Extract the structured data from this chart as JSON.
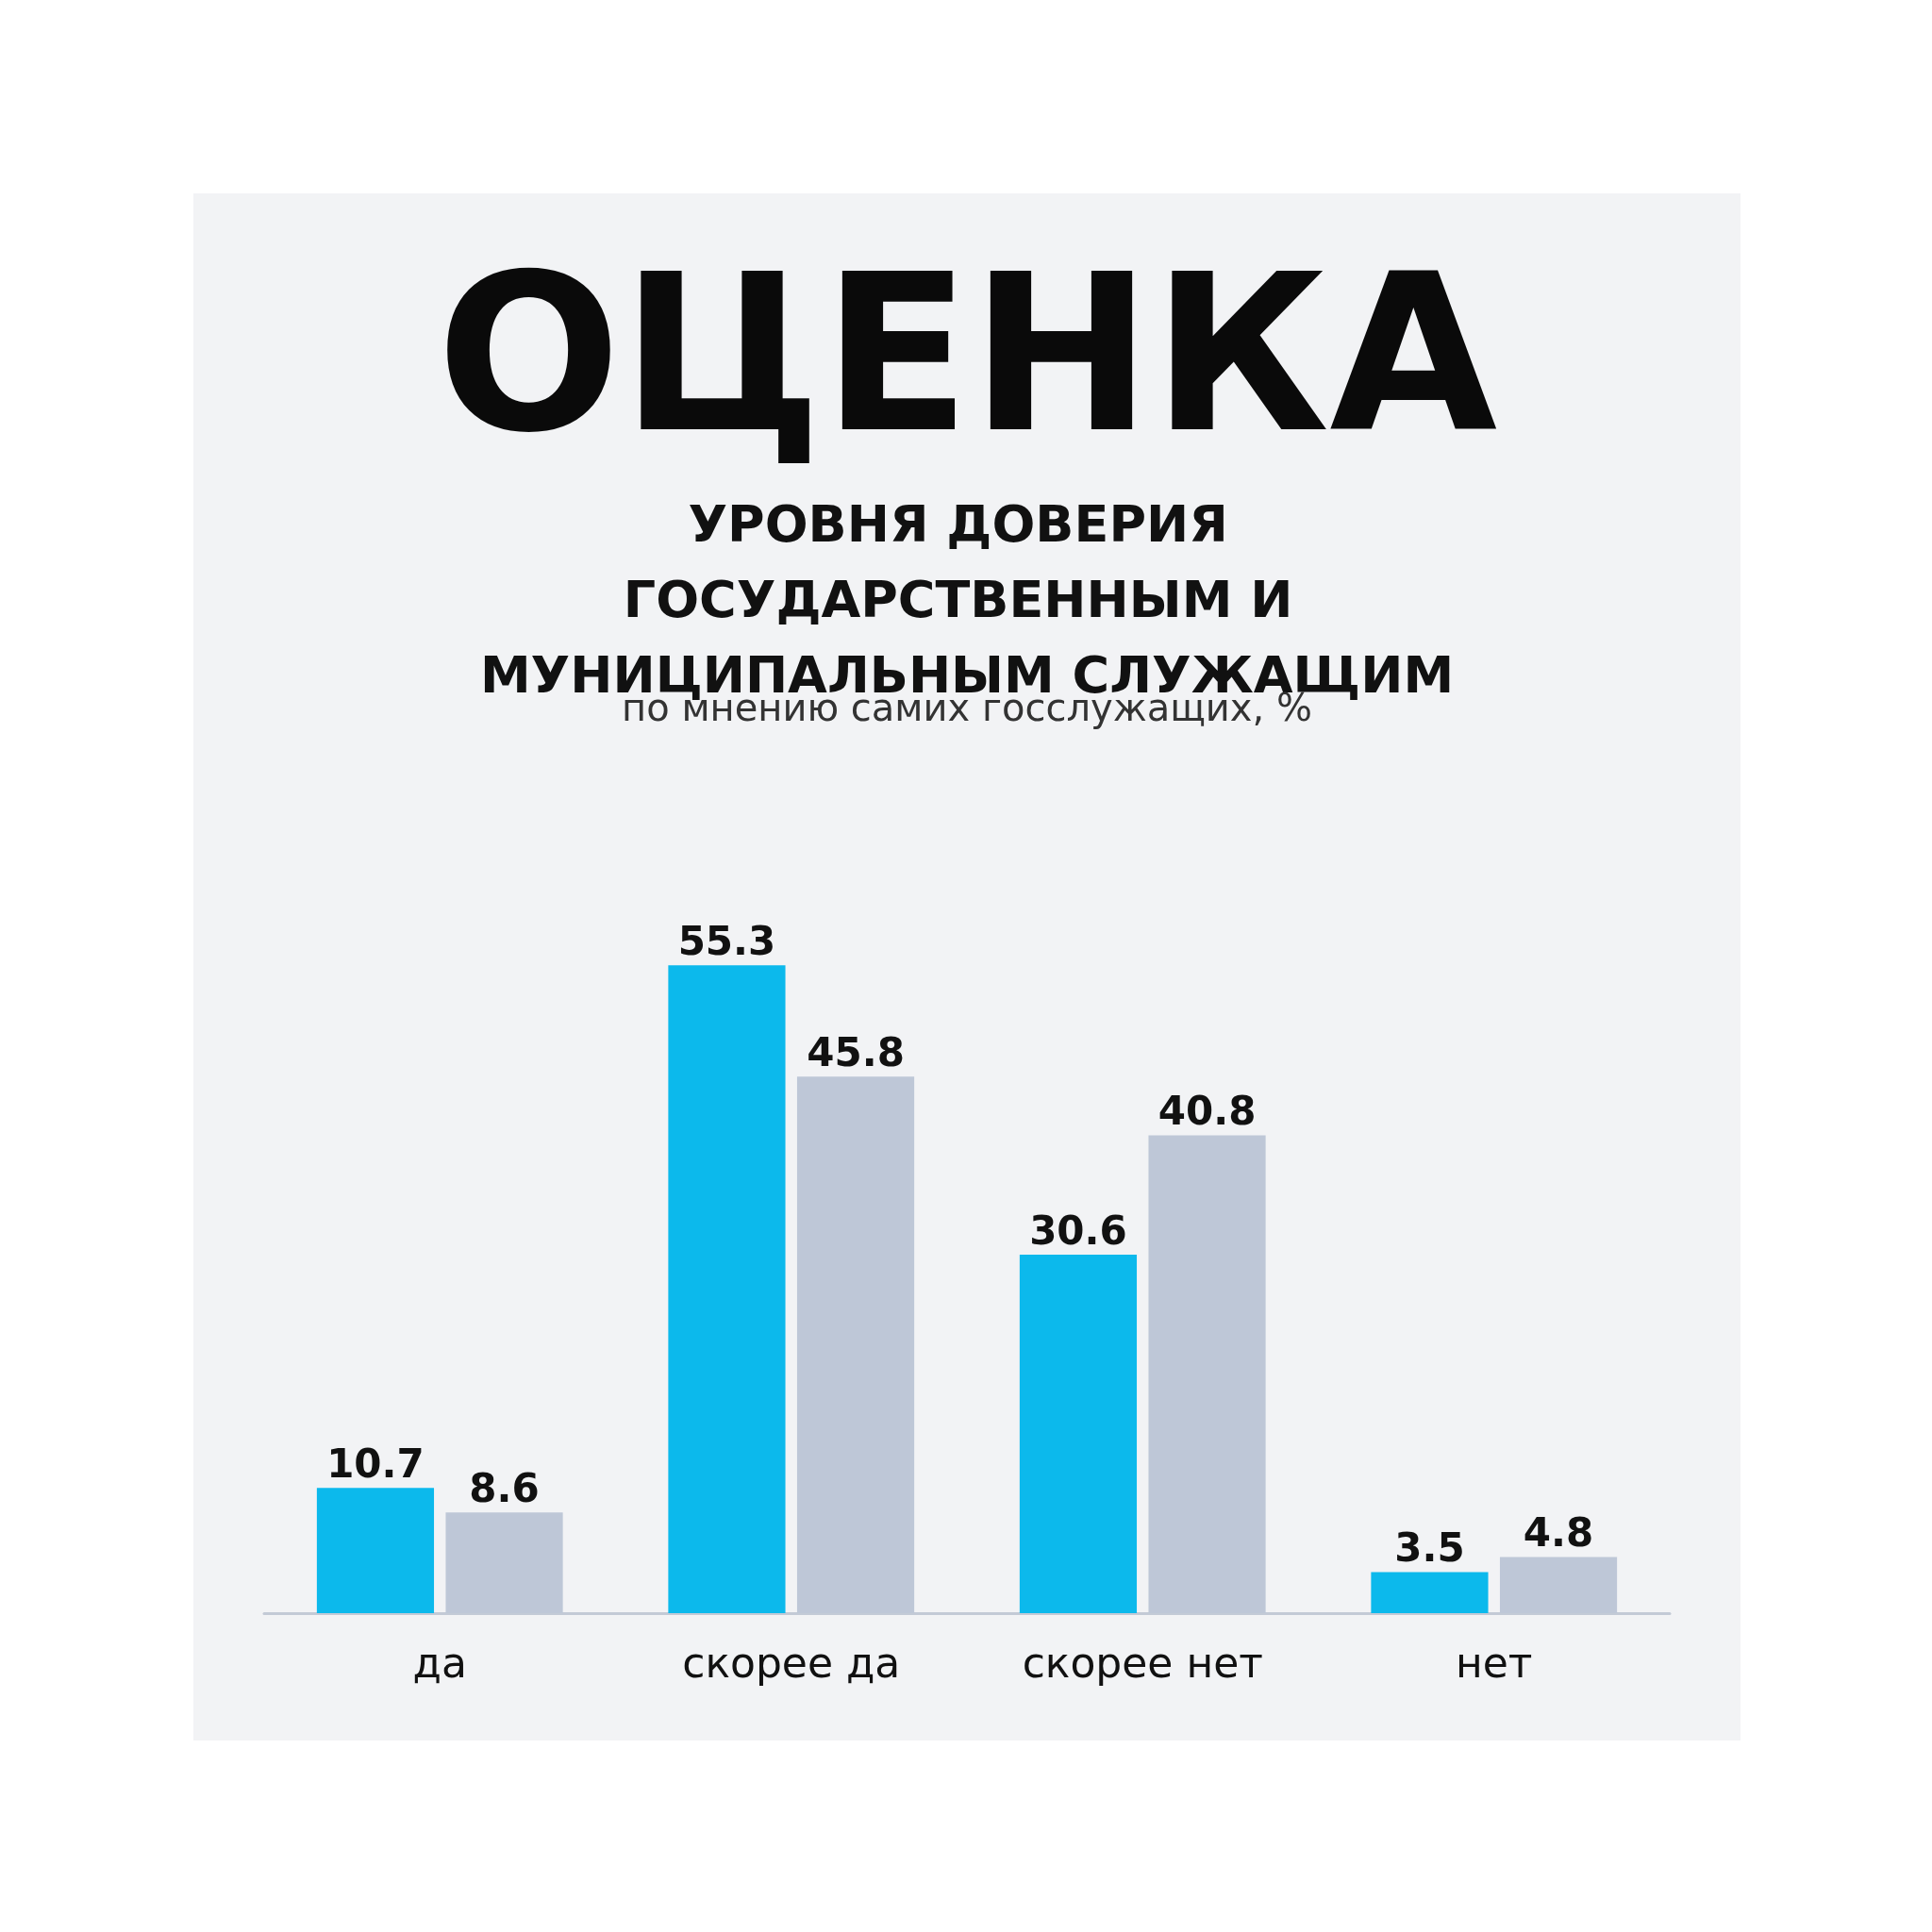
{
  "chart_data": {
    "type": "bar",
    "title": "ОЦЕНКА",
    "subtitle": "УРОВНЯ ДОВЕРИЯ ГОСУДАРСТВЕННЫМ И МУНИЦИПАЛЬНЫМ СЛУЖАЩИМ",
    "annotations": [
      "по мнению самих госслужащих, %"
    ],
    "categories": [
      "да",
      "скорее да",
      "скорее нет",
      "нет"
    ],
    "series": [
      {
        "color": "#0cb9ec",
        "values": [
          10.7,
          55.3,
          30.6,
          3.5
        ]
      },
      {
        "color": "#bec7d7",
        "values": [
          8.6,
          45.8,
          40.8,
          4.8
        ]
      }
    ],
    "data_labels": true,
    "grid": false
  }
}
